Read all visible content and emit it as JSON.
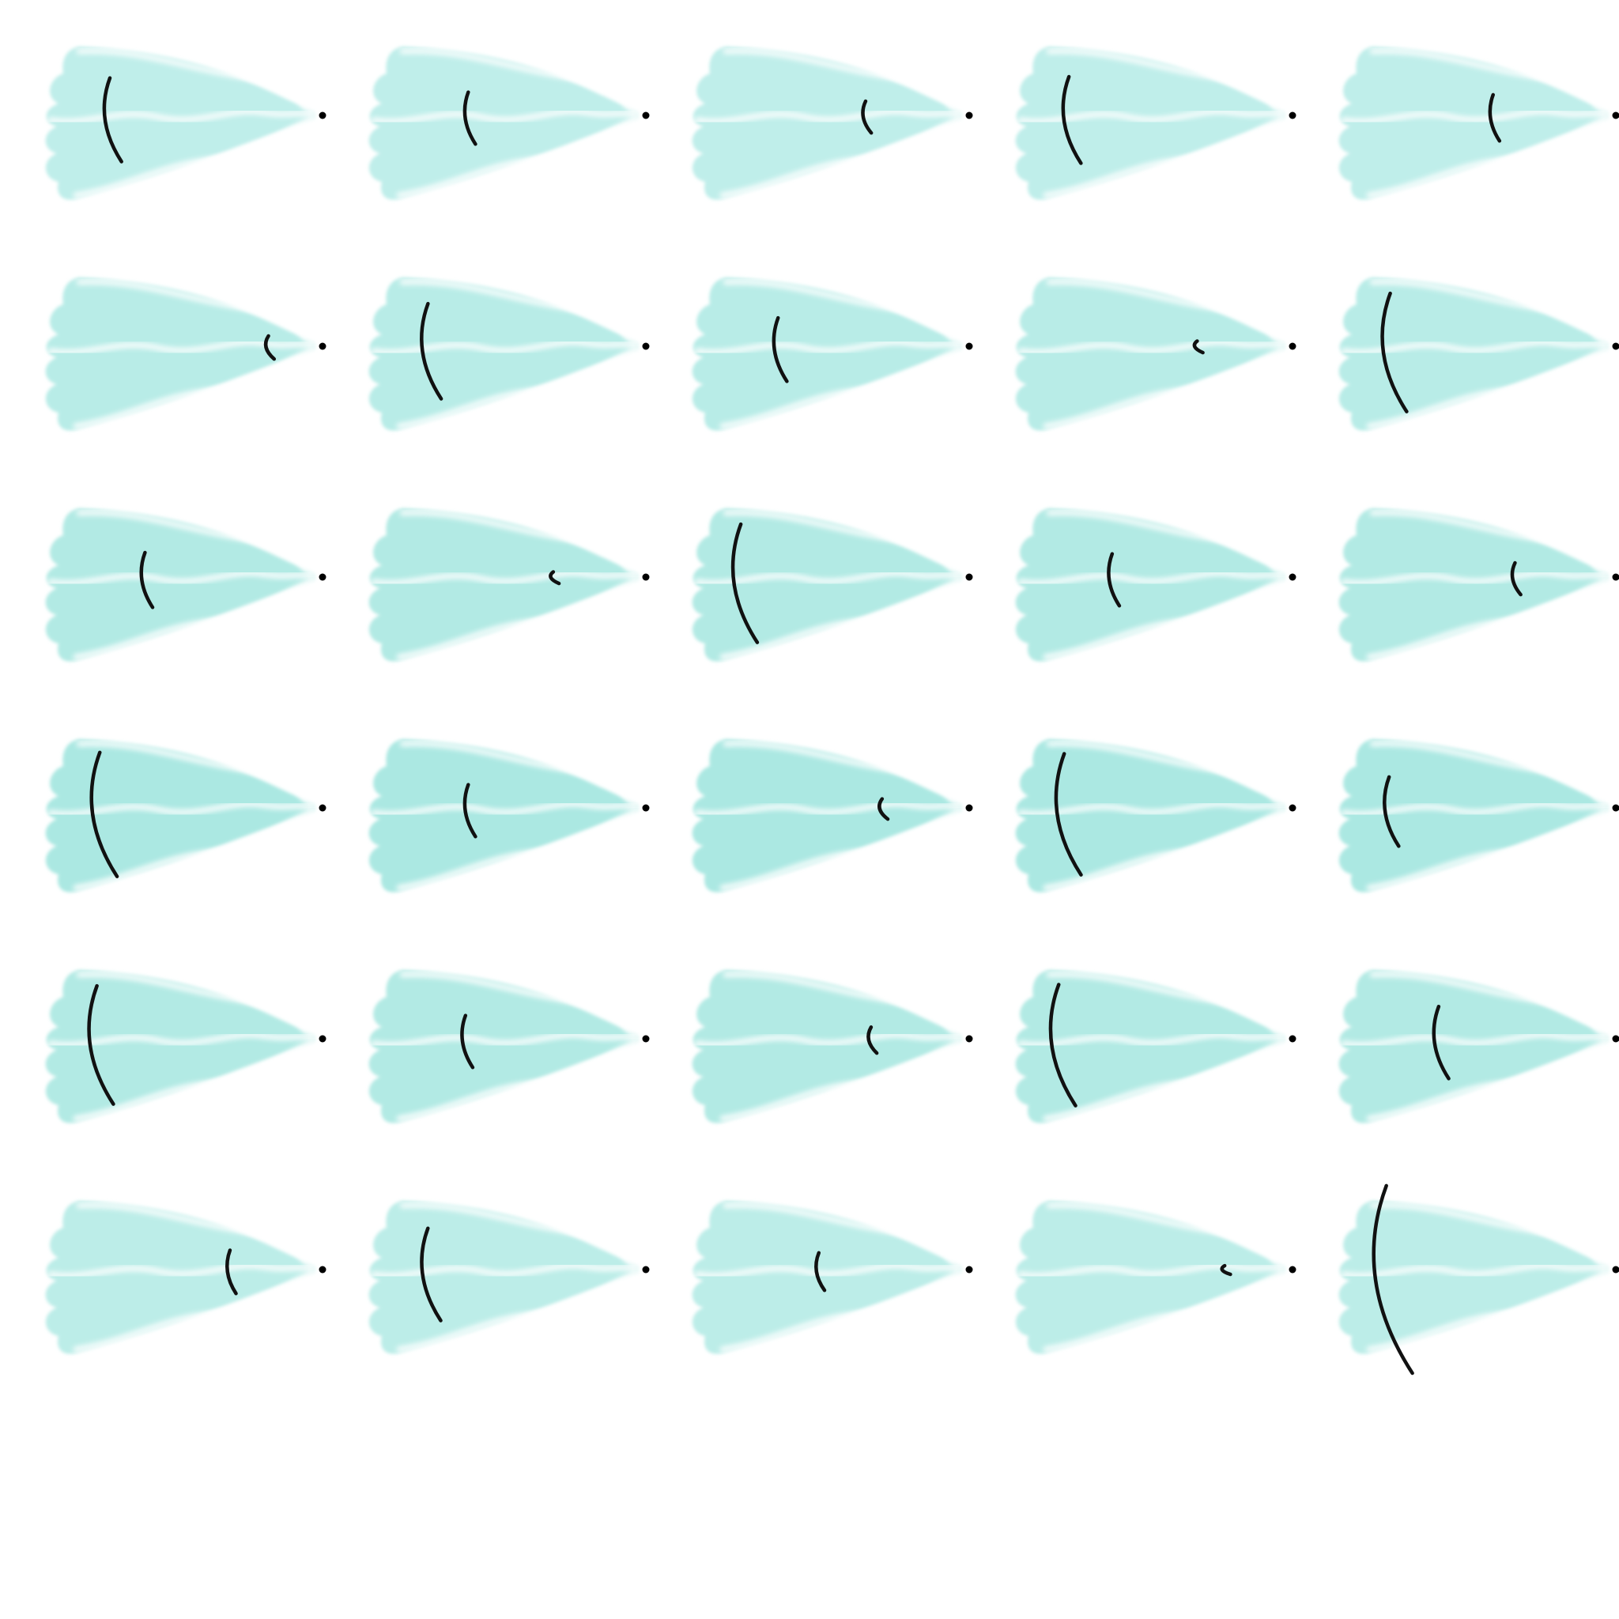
{
  "grid": {
    "rows": 6,
    "columns": 5,
    "background": "#ffffff",
    "fan_color": "#a6e8e1",
    "stripe_color": "#ffffff",
    "arc_color": "#111111",
    "apex_dot_color": "#000000",
    "cells": [
      {
        "row": 0,
        "col": 0,
        "arc_position": 0.22,
        "arc_extent": 0.58,
        "fan_shade": "#bfeeea"
      },
      {
        "row": 0,
        "col": 1,
        "arc_position": 0.35,
        "arc_extent": 0.36,
        "fan_shade": "#bfeeea"
      },
      {
        "row": 0,
        "col": 2,
        "arc_position": 0.62,
        "arc_extent": 0.22,
        "fan_shade": "#bfeeea"
      },
      {
        "row": 0,
        "col": 3,
        "arc_position": 0.18,
        "arc_extent": 0.6,
        "fan_shade": "#bfeeea"
      },
      {
        "row": 0,
        "col": 4,
        "arc_position": 0.55,
        "arc_extent": 0.32,
        "fan_shade": "#bfeeea"
      },
      {
        "row": 1,
        "col": 0,
        "arc_position": 0.8,
        "arc_extent": 0.16,
        "fan_shade": "#b8ece7"
      },
      {
        "row": 1,
        "col": 1,
        "arc_position": 0.2,
        "arc_extent": 0.66,
        "fan_shade": "#b8ece7"
      },
      {
        "row": 1,
        "col": 2,
        "arc_position": 0.3,
        "arc_extent": 0.44,
        "fan_shade": "#b8ece7"
      },
      {
        "row": 1,
        "col": 3,
        "arc_position": 0.65,
        "arc_extent": 0.08,
        "fan_shade": "#b8ece7"
      },
      {
        "row": 1,
        "col": 4,
        "arc_position": 0.17,
        "arc_extent": 0.82,
        "fan_shade": "#b8ece7"
      },
      {
        "row": 2,
        "col": 0,
        "arc_position": 0.35,
        "arc_extent": 0.38,
        "fan_shade": "#b2eae4"
      },
      {
        "row": 2,
        "col": 1,
        "arc_position": 0.66,
        "arc_extent": 0.08,
        "fan_shade": "#b2eae4"
      },
      {
        "row": 2,
        "col": 2,
        "arc_position": 0.16,
        "arc_extent": 0.82,
        "fan_shade": "#b2eae4"
      },
      {
        "row": 2,
        "col": 3,
        "arc_position": 0.34,
        "arc_extent": 0.36,
        "fan_shade": "#b2eae4"
      },
      {
        "row": 2,
        "col": 4,
        "arc_position": 0.63,
        "arc_extent": 0.22,
        "fan_shade": "#b2eae4"
      },
      {
        "row": 3,
        "col": 0,
        "arc_position": 0.18,
        "arc_extent": 0.86,
        "fan_shade": "#abe8e2"
      },
      {
        "row": 3,
        "col": 1,
        "arc_position": 0.35,
        "arc_extent": 0.36,
        "fan_shade": "#abe8e2"
      },
      {
        "row": 3,
        "col": 2,
        "arc_position": 0.68,
        "arc_extent": 0.14,
        "fan_shade": "#abe8e2"
      },
      {
        "row": 3,
        "col": 3,
        "arc_position": 0.16,
        "arc_extent": 0.84,
        "fan_shade": "#abe8e2"
      },
      {
        "row": 3,
        "col": 4,
        "arc_position": 0.17,
        "arc_extent": 0.48,
        "fan_shade": "#abe8e2"
      },
      {
        "row": 4,
        "col": 0,
        "arc_position": 0.17,
        "arc_extent": 0.82,
        "fan_shade": "#b2eae4"
      },
      {
        "row": 4,
        "col": 1,
        "arc_position": 0.34,
        "arc_extent": 0.36,
        "fan_shade": "#b2eae4"
      },
      {
        "row": 4,
        "col": 2,
        "arc_position": 0.64,
        "arc_extent": 0.18,
        "fan_shade": "#b2eae4"
      },
      {
        "row": 4,
        "col": 3,
        "arc_position": 0.14,
        "arc_extent": 0.84,
        "fan_shade": "#b2eae4"
      },
      {
        "row": 4,
        "col": 4,
        "arc_position": 0.35,
        "arc_extent": 0.5,
        "fan_shade": "#b2eae4"
      },
      {
        "row": 5,
        "col": 0,
        "arc_position": 0.66,
        "arc_extent": 0.3,
        "fan_shade": "#bcede8"
      },
      {
        "row": 5,
        "col": 1,
        "arc_position": 0.2,
        "arc_extent": 0.64,
        "fan_shade": "#bcede8"
      },
      {
        "row": 5,
        "col": 2,
        "arc_position": 0.45,
        "arc_extent": 0.26,
        "fan_shade": "#bcede8"
      },
      {
        "row": 5,
        "col": 3,
        "arc_position": 0.75,
        "arc_extent": 0.06,
        "fan_shade": "#bcede8"
      },
      {
        "row": 5,
        "col": 4,
        "arc_position": 0.15,
        "arc_extent": 1.3,
        "fan_shade": "#bcede8"
      }
    ]
  }
}
